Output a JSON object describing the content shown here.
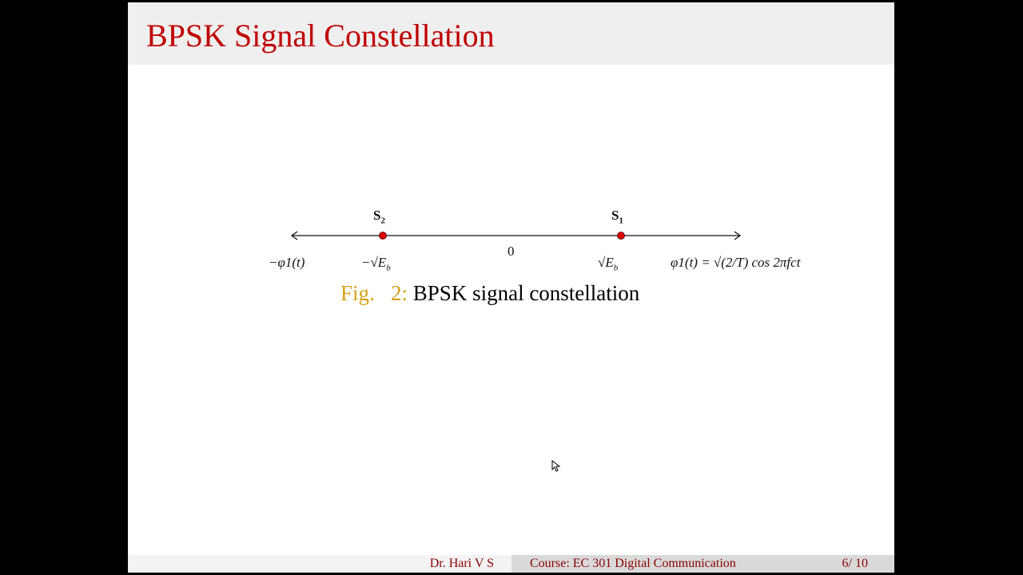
{
  "slide": {
    "title": "BPSK Signal Constellation",
    "diagram": {
      "points": [
        {
          "label": "S",
          "sub": "2",
          "value_text": "−√E",
          "value_sub": "b"
        },
        {
          "label": "S",
          "sub": "1",
          "value_text": "√E",
          "value_sub": "b"
        }
      ],
      "origin_label": "0",
      "left_axis_label": "−φ1(t)",
      "right_axis_label": "φ1(t) = √(2/T) cos 2πfct",
      "point_color": "#e00000"
    },
    "caption": {
      "fig_label": "Fig.   2:",
      "text": "BPSK signal constellation"
    },
    "title_color": "#c00000",
    "caption_label_color": "#d4a017"
  },
  "footer": {
    "author": "Dr. Hari V S",
    "course": "Course: EC 301 Digital Communication",
    "page": "6/ 10"
  }
}
